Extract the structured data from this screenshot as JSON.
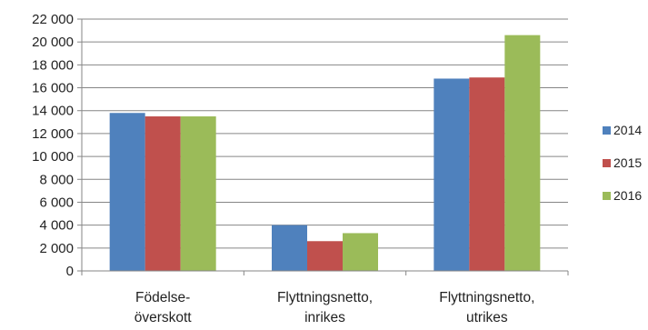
{
  "chart_data": {
    "type": "bar",
    "categories": [
      [
        "Födelse-",
        "överskott"
      ],
      [
        "Flyttningsnetto,",
        "inrikes"
      ],
      [
        "Flyttningsnetto,",
        "utrikes"
      ]
    ],
    "series": [
      {
        "name": "2014",
        "color": "#4f81bd",
        "values": [
          13800,
          4000,
          16800
        ]
      },
      {
        "name": "2015",
        "color": "#c0504d",
        "values": [
          13500,
          2600,
          16900
        ]
      },
      {
        "name": "2016",
        "color": "#9bbb59",
        "values": [
          13500,
          3300,
          20600
        ]
      }
    ],
    "y_ticks": [
      "0",
      "2 000",
      "4 000",
      "6 000",
      "8 000",
      "10 000",
      "12 000",
      "14 000",
      "16 000",
      "18 000",
      "20 000",
      "22 000"
    ],
    "ylim": [
      0,
      22000
    ],
    "y_step": 2000,
    "grid": true,
    "legend_position": "right",
    "title": "",
    "xlabel": "",
    "ylabel": ""
  }
}
